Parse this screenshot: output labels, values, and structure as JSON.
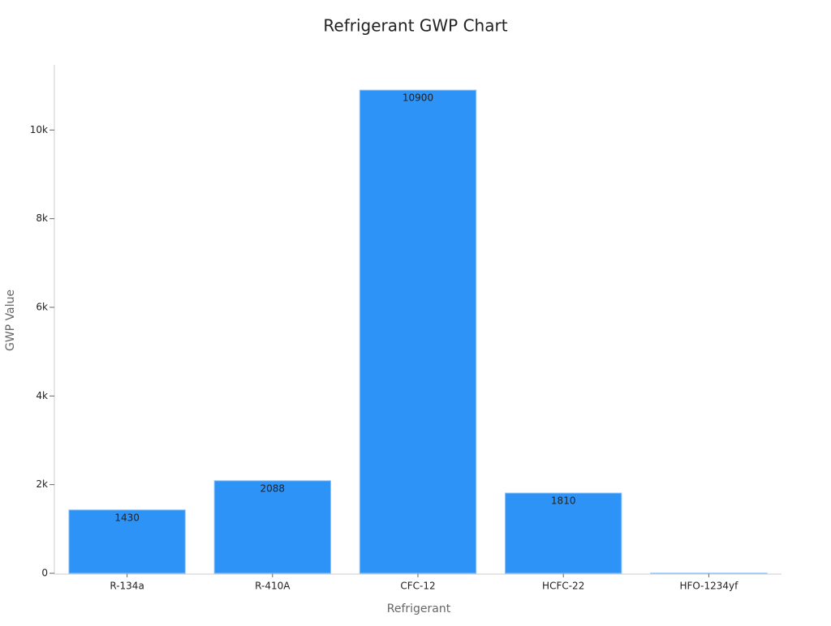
{
  "chart_data": {
    "type": "bar",
    "title": "Refrigerant GWP Chart",
    "x_label": "Refrigerant",
    "y_label": "GWP Value",
    "categories": [
      "R-134a",
      "R-410A",
      "CFC-12",
      "HCFC-22",
      "HFO-1234yf"
    ],
    "values": [
      1430,
      2088,
      10900,
      1810,
      4
    ],
    "color": "#2e93f7",
    "ylim": [
      0,
      11470
    ],
    "yticks": [
      0,
      {
        "value": 2000,
        "label": "2k"
      },
      {
        "value": 4000,
        "label": "4k"
      },
      {
        "value": 6000,
        "label": "6k"
      },
      {
        "value": 8000,
        "label": "8k"
      },
      {
        "value": 10000,
        "label": "10k"
      }
    ],
    "data_labels": true
  }
}
